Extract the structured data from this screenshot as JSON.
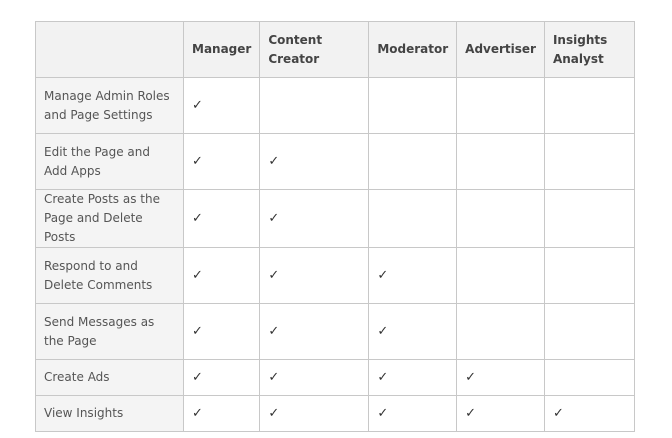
{
  "table": {
    "headers": [
      "",
      "Manager",
      "Content Creator",
      "Moderator",
      "Advertiser",
      "Insights Analyst"
    ],
    "check_glyph": "✓",
    "rows": [
      {
        "label": "Manage Admin Roles and Page Settings",
        "checks": [
          true,
          false,
          false,
          false,
          false
        ]
      },
      {
        "label": "Edit the Page and Add Apps",
        "checks": [
          true,
          true,
          false,
          false,
          false
        ]
      },
      {
        "label": "Create Posts as the Page and Delete Posts",
        "checks": [
          true,
          true,
          false,
          false,
          false
        ]
      },
      {
        "label": "Respond to and Delete Comments",
        "checks": [
          true,
          true,
          true,
          false,
          false
        ]
      },
      {
        "label": "Send Messages as the Page",
        "checks": [
          true,
          true,
          true,
          false,
          false
        ]
      },
      {
        "label": "Create Ads",
        "checks": [
          true,
          true,
          true,
          true,
          false
        ]
      },
      {
        "label": "View Insights",
        "checks": [
          true,
          true,
          true,
          true,
          true
        ]
      }
    ]
  }
}
